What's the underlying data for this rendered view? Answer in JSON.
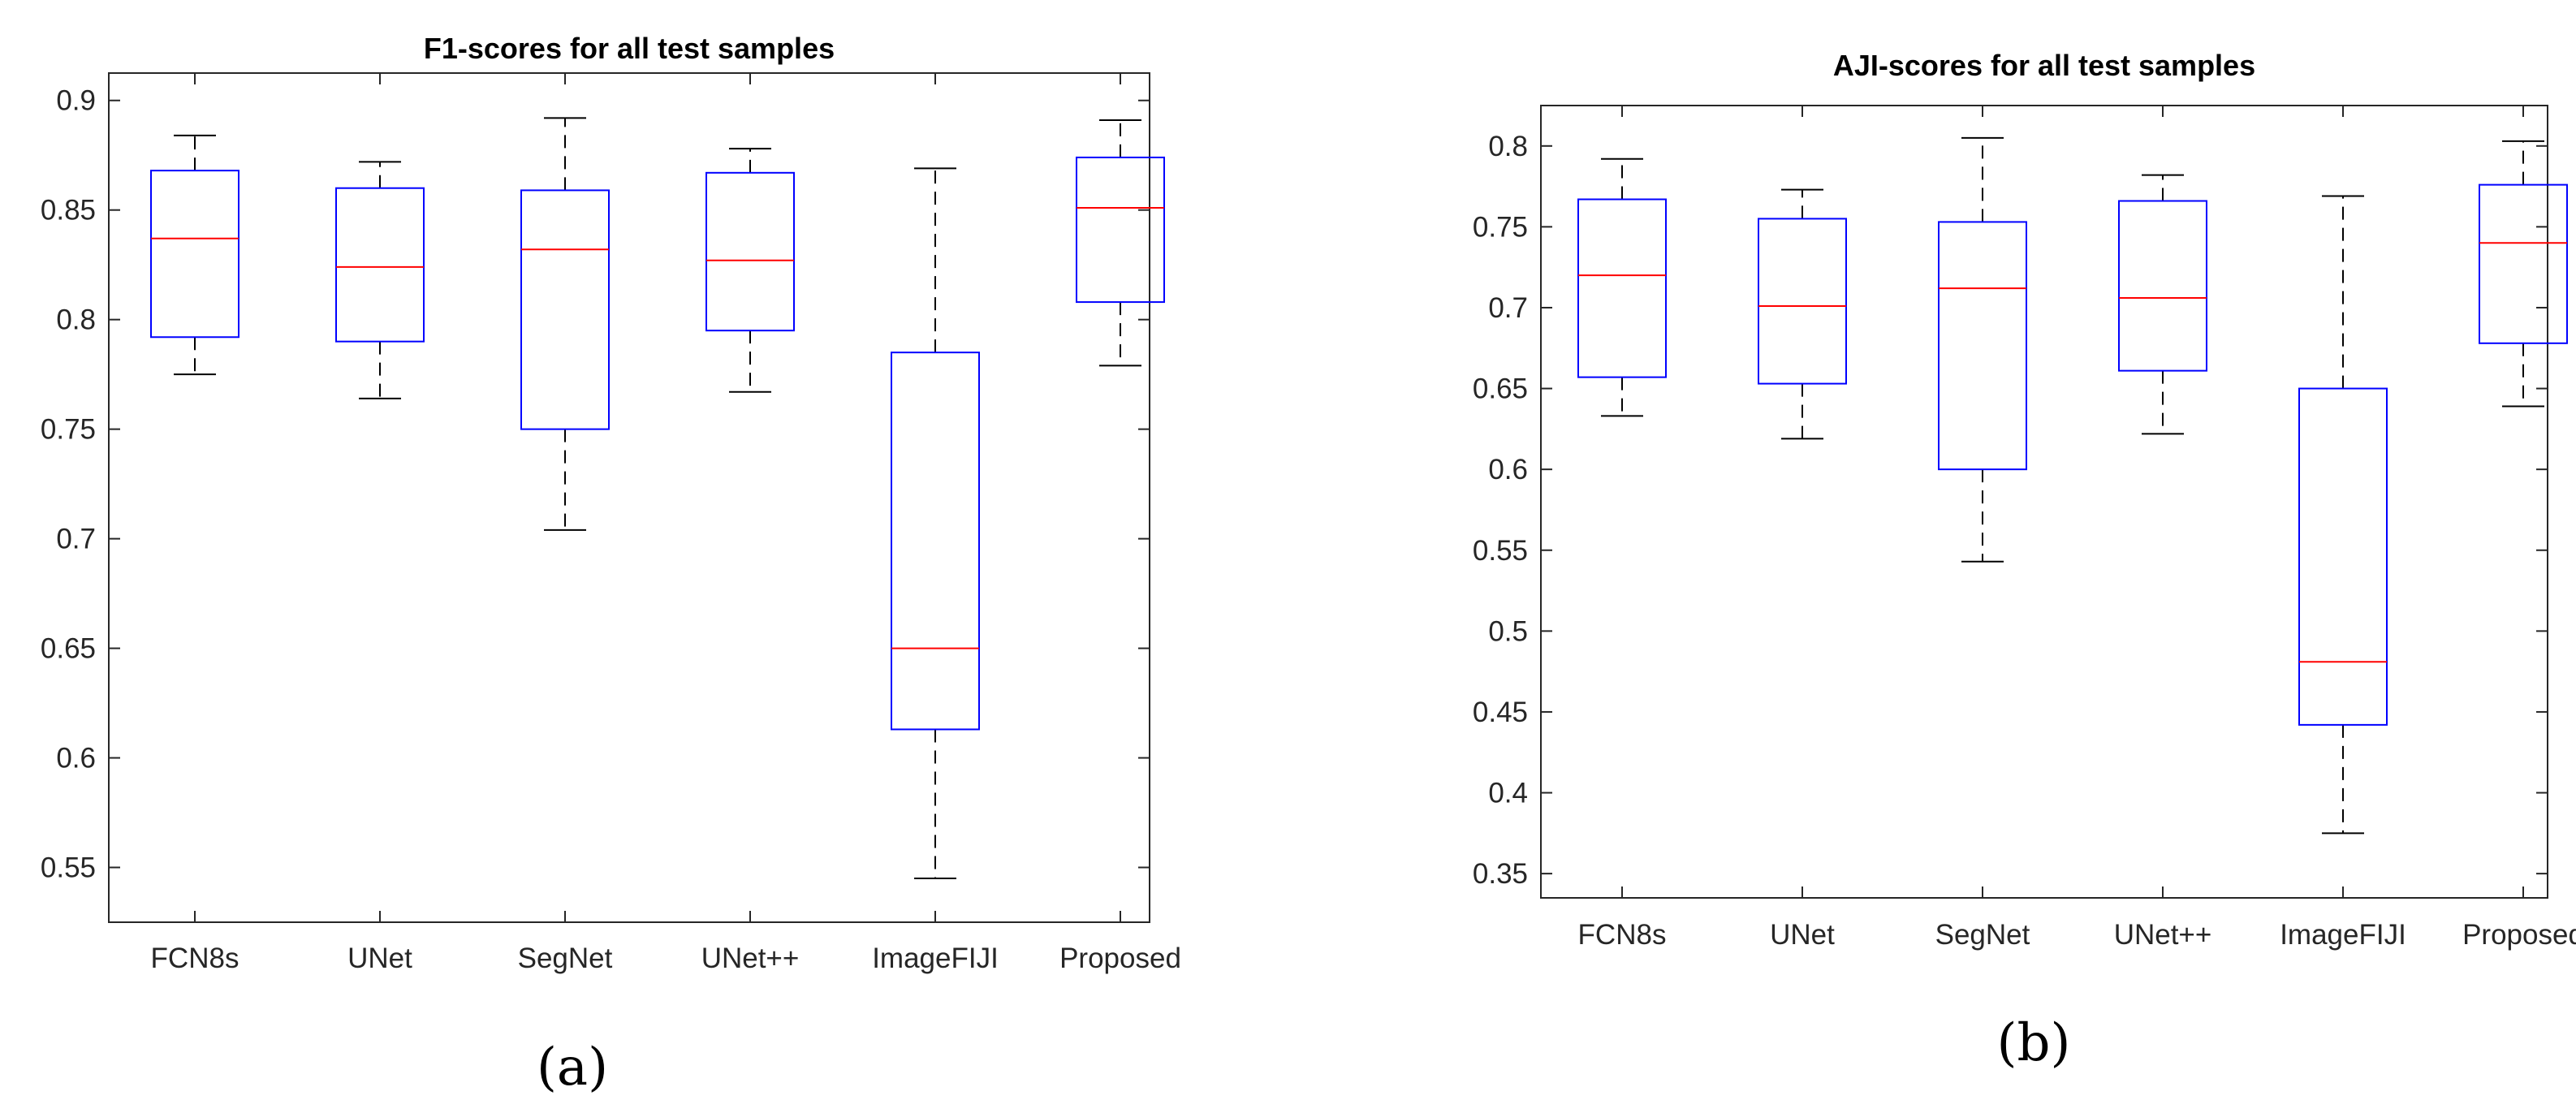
{
  "chart_data": [
    {
      "type": "boxplot",
      "title": "F1-scores for all test samples",
      "panel_label": "(a)",
      "xlabel": "",
      "ylabel": "",
      "categories": [
        "FCN8s",
        "UNet",
        "SegNet",
        "UNet++",
        "ImageFIJI",
        "Proposed"
      ],
      "ylim": [
        0.525,
        0.9125
      ],
      "yticks": [
        0.55,
        0.6,
        0.65,
        0.7,
        0.75,
        0.8,
        0.85,
        0.9
      ],
      "ytick_labels": [
        "0.55",
        "0.6",
        "0.65",
        "0.7",
        "0.75",
        "0.8",
        "0.85",
        "0.9"
      ],
      "grid": false,
      "boxes": [
        {
          "name": "FCN8s",
          "whisker_low": 0.775,
          "q1": 0.792,
          "median": 0.837,
          "q3": 0.868,
          "whisker_high": 0.884
        },
        {
          "name": "UNet",
          "whisker_low": 0.764,
          "q1": 0.79,
          "median": 0.824,
          "q3": 0.86,
          "whisker_high": 0.872
        },
        {
          "name": "SegNet",
          "whisker_low": 0.704,
          "q1": 0.75,
          "median": 0.832,
          "q3": 0.859,
          "whisker_high": 0.892
        },
        {
          "name": "UNet++",
          "whisker_low": 0.767,
          "q1": 0.795,
          "median": 0.827,
          "q3": 0.867,
          "whisker_high": 0.878
        },
        {
          "name": "ImageFIJI",
          "whisker_low": 0.545,
          "q1": 0.613,
          "median": 0.65,
          "q3": 0.785,
          "whisker_high": 0.869
        },
        {
          "name": "Proposed",
          "whisker_low": 0.779,
          "q1": 0.808,
          "median": 0.851,
          "q3": 0.874,
          "whisker_high": 0.891
        }
      ]
    },
    {
      "type": "boxplot",
      "title": "AJI-scores for all test samples",
      "panel_label": "(b)",
      "xlabel": "",
      "ylabel": "",
      "categories": [
        "FCN8s",
        "UNet",
        "SegNet",
        "UNet++",
        "ImageFIJI",
        "Proposed"
      ],
      "ylim": [
        0.335,
        0.825
      ],
      "yticks": [
        0.35,
        0.4,
        0.45,
        0.5,
        0.55,
        0.6,
        0.65,
        0.7,
        0.75,
        0.8
      ],
      "ytick_labels": [
        "0.35",
        "0.4",
        "0.45",
        "0.5",
        "0.55",
        "0.6",
        "0.65",
        "0.7",
        "0.75",
        "0.8"
      ],
      "grid": false,
      "boxes": [
        {
          "name": "FCN8s",
          "whisker_low": 0.633,
          "q1": 0.657,
          "median": 0.72,
          "q3": 0.767,
          "whisker_high": 0.792
        },
        {
          "name": "UNet",
          "whisker_low": 0.619,
          "q1": 0.653,
          "median": 0.701,
          "q3": 0.755,
          "whisker_high": 0.773
        },
        {
          "name": "SegNet",
          "whisker_low": 0.543,
          "q1": 0.6,
          "median": 0.712,
          "q3": 0.753,
          "whisker_high": 0.805
        },
        {
          "name": "UNet++",
          "whisker_low": 0.622,
          "q1": 0.661,
          "median": 0.706,
          "q3": 0.766,
          "whisker_high": 0.782
        },
        {
          "name": "ImageFIJI",
          "whisker_low": 0.375,
          "q1": 0.442,
          "median": 0.481,
          "q3": 0.65,
          "whisker_high": 0.769
        },
        {
          "name": "Proposed",
          "whisker_low": 0.639,
          "q1": 0.678,
          "median": 0.74,
          "q3": 0.776,
          "whisker_high": 0.803
        }
      ]
    }
  ],
  "colors": {
    "box": "#0000ff",
    "median": "#ff0000",
    "whisker": "#000000",
    "axes": "#262626",
    "text": "#262626",
    "background": "#ffffff"
  }
}
